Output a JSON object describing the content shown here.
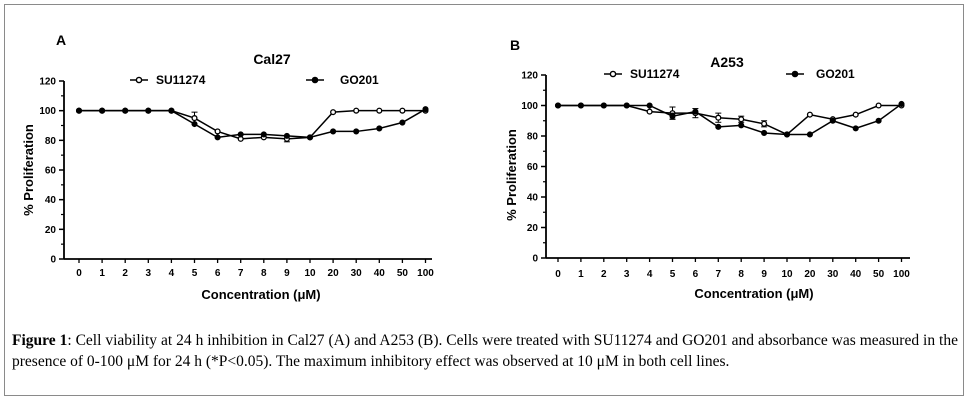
{
  "caption": {
    "label": "Figure 1",
    "text": ": Cell viability at 24 h inhibition in Cal27 (A) and A253 (B). Cells were treated with SU11274 and GO201 and absorbance was measured in the presence of 0-100 μM for 24 h (*P<0.05). The maximum inhibitory effect was observed at 10 μM in both cell lines."
  },
  "chart_data": [
    {
      "type": "line",
      "panel_label": "A",
      "title": "Cal27",
      "xlabel": "Concentration (μM)",
      "ylabel": "% Proliferation",
      "categories": [
        "0",
        "1",
        "2",
        "3",
        "4",
        "5",
        "6",
        "7",
        "8",
        "9",
        "10",
        "20",
        "30",
        "40",
        "50",
        "100"
      ],
      "ylim": [
        0,
        120
      ],
      "yticks": [
        "0",
        "20",
        "40",
        "60",
        "80",
        "100",
        "120"
      ],
      "legend_position": "top",
      "grid": false,
      "series": [
        {
          "name": "SU11274",
          "marker": "open-circle",
          "values": [
            100,
            100,
            100,
            100,
            100,
            95,
            86,
            81,
            82,
            81,
            82,
            99,
            100,
            100,
            100,
            100
          ],
          "errors": [
            0,
            0,
            0,
            0,
            0,
            4,
            0,
            0,
            0,
            2,
            0,
            0,
            0,
            0,
            0,
            0
          ]
        },
        {
          "name": "GO201",
          "marker": "filled-circle",
          "values": [
            100,
            100,
            100,
            100,
            100,
            91,
            82,
            84,
            84,
            83,
            82,
            86,
            86,
            88,
            92,
            101
          ],
          "errors": [
            0,
            0,
            0,
            0,
            0,
            0,
            0,
            0,
            0,
            0,
            0,
            0,
            0,
            0,
            0,
            0
          ]
        }
      ]
    },
    {
      "type": "line",
      "panel_label": "B",
      "title": "A253",
      "xlabel": "Concentration (μM)",
      "ylabel": "% Proliferation",
      "categories": [
        "0",
        "1",
        "2",
        "3",
        "4",
        "5",
        "6",
        "7",
        "8",
        "9",
        "10",
        "20",
        "30",
        "40",
        "50",
        "100"
      ],
      "ylim": [
        0,
        120
      ],
      "yticks": [
        "0",
        "20",
        "40",
        "60",
        "80",
        "100",
        "120"
      ],
      "legend_position": "top",
      "grid": false,
      "series": [
        {
          "name": "SU11274",
          "marker": "open-circle",
          "values": [
            100,
            100,
            100,
            100,
            96,
            95,
            95,
            92,
            91,
            88,
            81,
            94,
            91,
            94,
            100,
            100
          ],
          "errors": [
            0,
            0,
            0,
            0,
            0,
            4,
            3,
            3,
            2,
            2,
            0,
            0,
            0,
            0,
            0,
            0
          ]
        },
        {
          "name": "GO201",
          "marker": "filled-circle",
          "values": [
            100,
            100,
            100,
            100,
            100,
            93,
            96,
            86,
            87,
            82,
            81,
            81,
            90,
            85,
            90,
            101
          ],
          "errors": [
            0,
            0,
            0,
            0,
            0,
            2,
            0,
            0,
            0,
            0,
            0,
            0,
            0,
            0,
            0,
            0
          ]
        }
      ]
    }
  ]
}
